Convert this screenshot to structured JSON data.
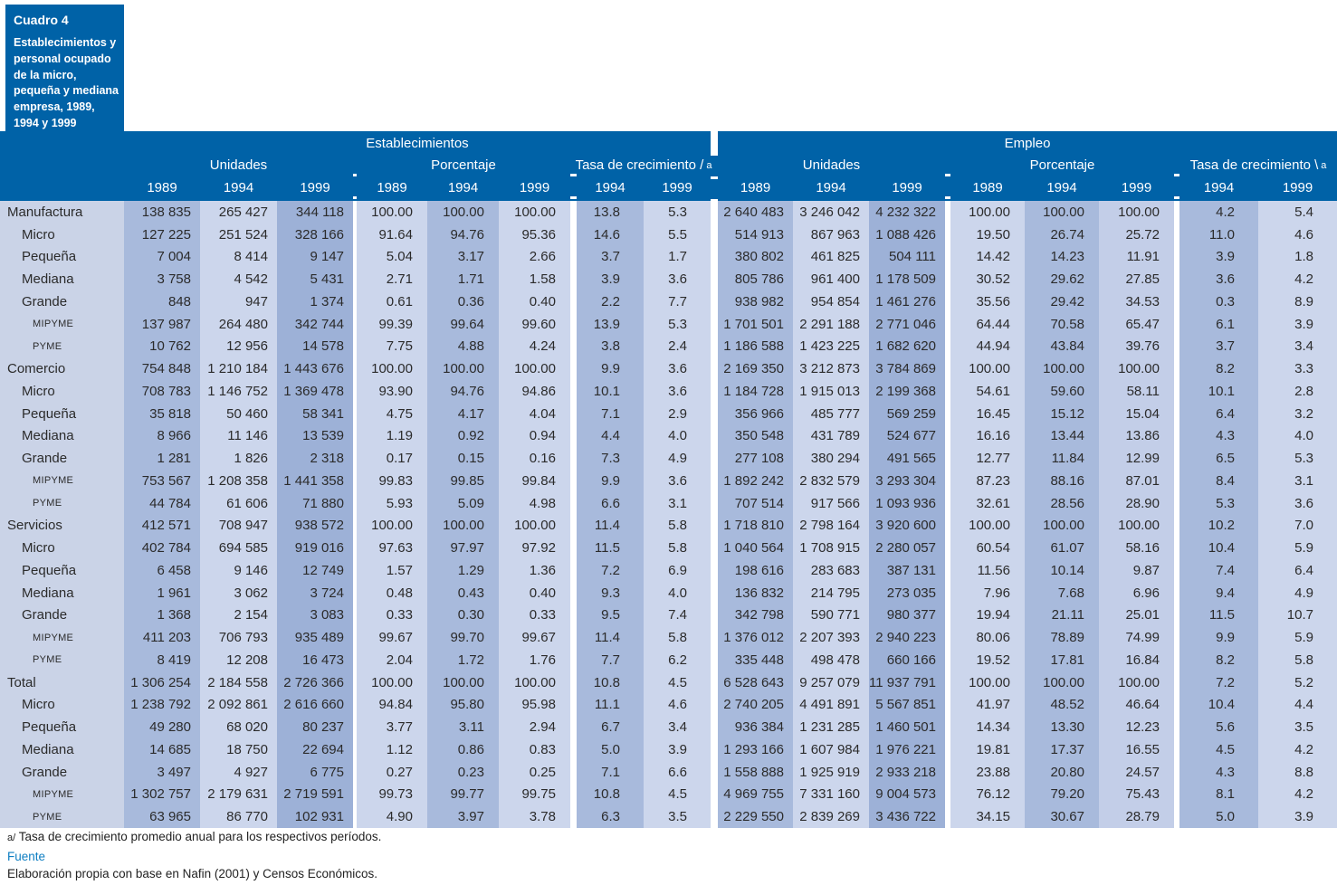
{
  "title_box": {
    "label": "Cuadro 4",
    "description_lines": [
      "Establecimientos y",
      "personal ocupado",
      "de la micro,",
      "pequeña y mediana",
      "empresa, 1989,",
      "1994 y 1999"
    ]
  },
  "header": {
    "sections": [
      {
        "label": "Establecimientos",
        "groups": [
          {
            "label": "Unidades",
            "marker": "",
            "years": [
              "1989",
              "1994",
              "1999"
            ]
          },
          {
            "label": "Porcentaje",
            "marker": "",
            "years": [
              "1989",
              "1994",
              "1999"
            ]
          },
          {
            "label": "Tasa de crecimiento /",
            "marker": "a",
            "years": [
              "1994",
              "1999"
            ]
          }
        ]
      },
      {
        "label": "Empleo",
        "groups": [
          {
            "label": "Unidades",
            "marker": "",
            "years": [
              "1989",
              "1994",
              "1999"
            ]
          },
          {
            "label": "Porcentaje",
            "marker": "",
            "years": [
              "1989",
              "1994",
              "1999"
            ]
          },
          {
            "label": "Tasa de crecimiento \\",
            "marker": "a",
            "years": [
              "1994",
              "1999"
            ]
          }
        ]
      }
    ]
  },
  "rows": [
    {
      "label": "Manufactura",
      "level": 0,
      "values": [
        "138 835",
        "265 427",
        "344 118",
        "100.00",
        "100.00",
        "100.00",
        "13.8",
        "5.3",
        "2 640 483",
        "3 246 042",
        "4 232 322",
        "100.00",
        "100.00",
        "100.00",
        "4.2",
        "5.4"
      ]
    },
    {
      "label": "Micro",
      "level": 1,
      "values": [
        "127 225",
        "251 524",
        "328 166",
        "91.64",
        "94.76",
        "95.36",
        "14.6",
        "5.5",
        "514 913",
        "867 963",
        "1 088 426",
        "19.50",
        "26.74",
        "25.72",
        "11.0",
        "4.6"
      ]
    },
    {
      "label": "Pequeña",
      "level": 1,
      "values": [
        "7 004",
        "8 414",
        "9 147",
        "5.04",
        "3.17",
        "2.66",
        "3.7",
        "1.7",
        "380 802",
        "461 825",
        "504 111",
        "14.42",
        "14.23",
        "11.91",
        "3.9",
        "1.8"
      ]
    },
    {
      "label": "Mediana",
      "level": 1,
      "values": [
        "3 758",
        "4 542",
        "5 431",
        "2.71",
        "1.71",
        "1.58",
        "3.9",
        "3.6",
        "805 786",
        "961 400",
        "1 178 509",
        "30.52",
        "29.62",
        "27.85",
        "3.6",
        "4.2"
      ]
    },
    {
      "label": "Grande",
      "level": 1,
      "values": [
        "848",
        "947",
        "1 374",
        "0.61",
        "0.36",
        "0.40",
        "2.2",
        "7.7",
        "938 982",
        "954 854",
        "1 461 276",
        "35.56",
        "29.42",
        "34.53",
        "0.3",
        "8.9"
      ]
    },
    {
      "label": "MIPYME",
      "level": 2,
      "values": [
        "137 987",
        "264 480",
        "342 744",
        "99.39",
        "99.64",
        "99.60",
        "13.9",
        "5.3",
        "1 701 501",
        "2 291 188",
        "2 771 046",
        "64.44",
        "70.58",
        "65.47",
        "6.1",
        "3.9"
      ]
    },
    {
      "label": "PYME",
      "level": 2,
      "values": [
        "10 762",
        "12 956",
        "14 578",
        "7.75",
        "4.88",
        "4.24",
        "3.8",
        "2.4",
        "1 186 588",
        "1 423 225",
        "1 682 620",
        "44.94",
        "43.84",
        "39.76",
        "3.7",
        "3.4"
      ]
    },
    {
      "label": "Comercio",
      "level": 0,
      "values": [
        "754 848",
        "1 210 184",
        "1 443 676",
        "100.00",
        "100.00",
        "100.00",
        "9.9",
        "3.6",
        "2 169 350",
        "3 212 873",
        "3 784 869",
        "100.00",
        "100.00",
        "100.00",
        "8.2",
        "3.3"
      ]
    },
    {
      "label": "Micro",
      "level": 1,
      "values": [
        "708 783",
        "1 146 752",
        "1 369 478",
        "93.90",
        "94.76",
        "94.86",
        "10.1",
        "3.6",
        "1 184 728",
        "1 915 013",
        "2 199 368",
        "54.61",
        "59.60",
        "58.11",
        "10.1",
        "2.8"
      ]
    },
    {
      "label": "Pequeña",
      "level": 1,
      "values": [
        "35 818",
        "50 460",
        "58 341",
        "4.75",
        "4.17",
        "4.04",
        "7.1",
        "2.9",
        "356 966",
        "485 777",
        "569 259",
        "16.45",
        "15.12",
        "15.04",
        "6.4",
        "3.2"
      ]
    },
    {
      "label": "Mediana",
      "level": 1,
      "values": [
        "8 966",
        "11 146",
        "13 539",
        "1.19",
        "0.92",
        "0.94",
        "4.4",
        "4.0",
        "350 548",
        "431 789",
        "524 677",
        "16.16",
        "13.44",
        "13.86",
        "4.3",
        "4.0"
      ]
    },
    {
      "label": "Grande",
      "level": 1,
      "values": [
        "1 281",
        "1 826",
        "2 318",
        "0.17",
        "0.15",
        "0.16",
        "7.3",
        "4.9",
        "277 108",
        "380 294",
        "491 565",
        "12.77",
        "11.84",
        "12.99",
        "6.5",
        "5.3"
      ]
    },
    {
      "label": "MIPYME",
      "level": 2,
      "values": [
        "753 567",
        "1 208 358",
        "1 441 358",
        "99.83",
        "99.85",
        "99.84",
        "9.9",
        "3.6",
        "1 892 242",
        "2 832 579",
        "3 293 304",
        "87.23",
        "88.16",
        "87.01",
        "8.4",
        "3.1"
      ]
    },
    {
      "label": "PYME",
      "level": 2,
      "values": [
        "44 784",
        "61 606",
        "71 880",
        "5.93",
        "5.09",
        "4.98",
        "6.6",
        "3.1",
        "707 514",
        "917 566",
        "1 093 936",
        "32.61",
        "28.56",
        "28.90",
        "5.3",
        "3.6"
      ]
    },
    {
      "label": "Servicios",
      "level": 0,
      "values": [
        "412 571",
        "708 947",
        "938 572",
        "100.00",
        "100.00",
        "100.00",
        "11.4",
        "5.8",
        "1 718 810",
        "2 798 164",
        "3 920 600",
        "100.00",
        "100.00",
        "100.00",
        "10.2",
        "7.0"
      ]
    },
    {
      "label": "Micro",
      "level": 1,
      "values": [
        "402 784",
        "694 585",
        "919 016",
        "97.63",
        "97.97",
        "97.92",
        "11.5",
        "5.8",
        "1 040 564",
        "1 708 915",
        "2 280 057",
        "60.54",
        "61.07",
        "58.16",
        "10.4",
        "5.9"
      ]
    },
    {
      "label": "Pequeña",
      "level": 1,
      "values": [
        "6 458",
        "9 146",
        "12 749",
        "1.57",
        "1.29",
        "1.36",
        "7.2",
        "6.9",
        "198 616",
        "283 683",
        "387 131",
        "11.56",
        "10.14",
        "9.87",
        "7.4",
        "6.4"
      ]
    },
    {
      "label": "Mediana",
      "level": 1,
      "values": [
        "1 961",
        "3 062",
        "3 724",
        "0.48",
        "0.43",
        "0.40",
        "9.3",
        "4.0",
        "136 832",
        "214 795",
        "273 035",
        "7.96",
        "7.68",
        "6.96",
        "9.4",
        "4.9"
      ]
    },
    {
      "label": "Grande",
      "level": 1,
      "values": [
        "1 368",
        "2 154",
        "3 083",
        "0.33",
        "0.30",
        "0.33",
        "9.5",
        "7.4",
        "342 798",
        "590 771",
        "980 377",
        "19.94",
        "21.11",
        "25.01",
        "11.5",
        "10.7"
      ]
    },
    {
      "label": "MIPYME",
      "level": 2,
      "values": [
        "411 203",
        "706 793",
        "935 489",
        "99.67",
        "99.70",
        "99.67",
        "11.4",
        "5.8",
        "1 376 012",
        "2 207 393",
        "2 940 223",
        "80.06",
        "78.89",
        "74.99",
        "9.9",
        "5.9"
      ]
    },
    {
      "label": "PYME",
      "level": 2,
      "values": [
        "8 419",
        "12 208",
        "16 473",
        "2.04",
        "1.72",
        "1.76",
        "7.7",
        "6.2",
        "335 448",
        "498 478",
        "660 166",
        "19.52",
        "17.81",
        "16.84",
        "8.2",
        "5.8"
      ]
    },
    {
      "label": "Total",
      "level": 0,
      "values": [
        "1 306 254",
        "2 184 558",
        "2 726 366",
        "100.00",
        "100.00",
        "100.00",
        "10.8",
        "4.5",
        "6 528 643",
        "9 257 079",
        "11 937 791",
        "100.00",
        "100.00",
        "100.00",
        "7.2",
        "5.2"
      ]
    },
    {
      "label": "Micro",
      "level": 1,
      "values": [
        "1 238 792",
        "2 092 861",
        "2 616 660",
        "94.84",
        "95.80",
        "95.98",
        "11.1",
        "4.6",
        "2 740 205",
        "4 491 891",
        "5 567 851",
        "41.97",
        "48.52",
        "46.64",
        "10.4",
        "4.4"
      ]
    },
    {
      "label": "Pequeña",
      "level": 1,
      "values": [
        "49 280",
        "68 020",
        "80 237",
        "3.77",
        "3.11",
        "2.94",
        "6.7",
        "3.4",
        "936 384",
        "1 231 285",
        "1 460 501",
        "14.34",
        "13.30",
        "12.23",
        "5.6",
        "3.5"
      ]
    },
    {
      "label": "Mediana",
      "level": 1,
      "values": [
        "14 685",
        "18 750",
        "22 694",
        "1.12",
        "0.86",
        "0.83",
        "5.0",
        "3.9",
        "1 293 166",
        "1 607 984",
        "1 976 221",
        "19.81",
        "17.37",
        "16.55",
        "4.5",
        "4.2"
      ]
    },
    {
      "label": "Grande",
      "level": 1,
      "values": [
        "3 497",
        "4 927",
        "6 775",
        "0.27",
        "0.23",
        "0.25",
        "7.1",
        "6.6",
        "1 558 888",
        "1 925 919",
        "2 933 218",
        "23.88",
        "20.80",
        "24.57",
        "4.3",
        "8.8"
      ]
    },
    {
      "label": "MIPYME",
      "level": 2,
      "values": [
        "1 302 757",
        "2 179 631",
        "2 719 591",
        "99.73",
        "99.77",
        "99.75",
        "10.8",
        "4.5",
        "4 969 755",
        "7 331 160",
        "9 004 573",
        "76.12",
        "79.20",
        "75.43",
        "8.1",
        "4.2"
      ]
    },
    {
      "label": "PYME",
      "level": 2,
      "values": [
        "63 965",
        "86 770",
        "102 931",
        "4.90",
        "3.97",
        "3.78",
        "6.3",
        "3.5",
        "2 229 550",
        "2 839 269",
        "3 436 722",
        "34.15",
        "30.67",
        "28.79",
        "5.0",
        "3.9"
      ]
    }
  ],
  "footnotes": {
    "note_prefix": "a/",
    "note_text": "Tasa de crecimiento promedio anual para los respectivos períodos.",
    "source_label": "Fuente",
    "source_text": "Elaboración propia con base en Nafin (2001) y Censos Económicos."
  },
  "colors": {
    "header_blue": "#0062a7",
    "label_bg": "#cad3e7",
    "col_med": "#a8badc",
    "col_light": "#ccd6ec",
    "col_dark": "#9db1d7",
    "col_light2": "#c3cee8",
    "body_text": "#2b2b2b",
    "fuente_blue": "#0e7ec2"
  }
}
